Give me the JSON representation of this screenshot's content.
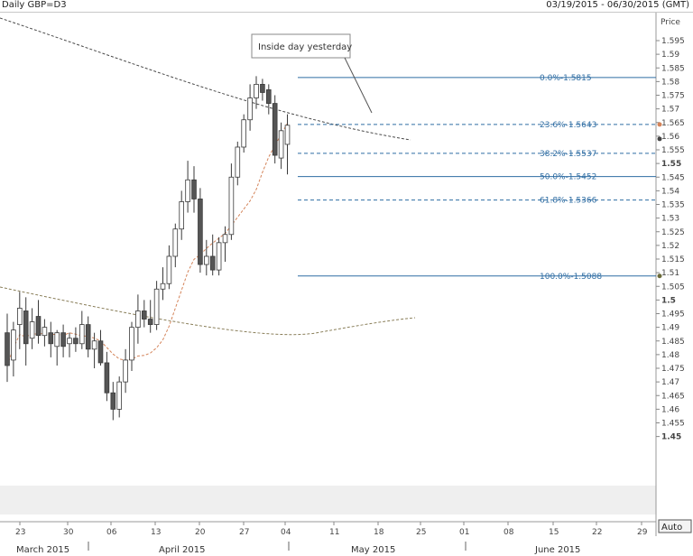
{
  "header": {
    "title": "Daily GBP=D3",
    "range": "03/19/2015 - 06/30/2015 (GMT)"
  },
  "yaxis": {
    "title": "Price",
    "ticks": [
      "1.595",
      "1.59",
      "1.585",
      "1.58",
      "1.575",
      "1.57",
      "1.565",
      "1.56",
      "1.555",
      "1.55",
      "1.545",
      "1.54",
      "1.535",
      "1.53",
      "1.525",
      "1.52",
      "1.515",
      "1.51",
      "1.505",
      "1.5",
      "1.495",
      "1.49",
      "1.485",
      "1.48",
      "1.475",
      "1.47",
      "1.465",
      "1.46",
      "1.455",
      "1.45"
    ],
    "bold_ticks": [
      "1.55",
      "1.5",
      "1.45"
    ],
    "auto_label": "Auto"
  },
  "xaxis": {
    "day_ticks": [
      "23",
      "30",
      "06",
      "13",
      "20",
      "27",
      "04",
      "11",
      "18",
      "25",
      "01",
      "08",
      "15",
      "22",
      "29"
    ],
    "months": [
      "March 2015",
      "April 2015",
      "May 2015",
      "June 2015"
    ]
  },
  "annotation": {
    "label": "Inside day yesterday"
  },
  "colors": {
    "up": "#ffffff",
    "down": "#555555",
    "wick": "#3a3a3a",
    "fib": "#2f6da3",
    "ma_long": "#4a4a4a",
    "ma_mid": "#8a7f5a",
    "ma_short": "#d4845a",
    "shade": "#efefef"
  },
  "chart_data": {
    "type": "candlestick",
    "title": "Daily GBP=D3",
    "date_range": "03/19/2015 - 06/30/2015 (GMT)",
    "ylabel": "Price",
    "ylim": [
      1.45,
      1.6
    ],
    "candles": [
      {
        "date": "2015-03-19",
        "open": 1.488,
        "high": 1.495,
        "low": 1.47,
        "close": 1.476
      },
      {
        "date": "2015-03-20",
        "open": 1.478,
        "high": 1.492,
        "low": 1.472,
        "close": 1.489
      },
      {
        "date": "2015-03-23",
        "open": 1.491,
        "high": 1.503,
        "low": 1.482,
        "close": 1.497
      },
      {
        "date": "2015-03-24",
        "open": 1.496,
        "high": 1.501,
        "low": 1.476,
        "close": 1.484
      },
      {
        "date": "2015-03-25",
        "open": 1.486,
        "high": 1.497,
        "low": 1.482,
        "close": 1.492
      },
      {
        "date": "2015-03-26",
        "open": 1.494,
        "high": 1.5,
        "low": 1.484,
        "close": 1.487
      },
      {
        "date": "2015-03-27",
        "open": 1.487,
        "high": 1.493,
        "low": 1.483,
        "close": 1.49
      },
      {
        "date": "2015-03-30",
        "open": 1.488,
        "high": 1.492,
        "low": 1.479,
        "close": 1.484
      },
      {
        "date": "2015-03-31",
        "open": 1.483,
        "high": 1.489,
        "low": 1.476,
        "close": 1.488
      },
      {
        "date": "2015-04-01",
        "open": 1.488,
        "high": 1.491,
        "low": 1.479,
        "close": 1.483
      },
      {
        "date": "2015-04-02",
        "open": 1.484,
        "high": 1.488,
        "low": 1.479,
        "close": 1.486
      },
      {
        "date": "2015-04-03",
        "open": 1.486,
        "high": 1.49,
        "low": 1.481,
        "close": 1.484
      },
      {
        "date": "2015-04-06",
        "open": 1.484,
        "high": 1.496,
        "low": 1.482,
        "close": 1.491
      },
      {
        "date": "2015-04-07",
        "open": 1.491,
        "high": 1.494,
        "low": 1.479,
        "close": 1.482
      },
      {
        "date": "2015-04-08",
        "open": 1.482,
        "high": 1.488,
        "low": 1.475,
        "close": 1.485
      },
      {
        "date": "2015-04-09",
        "open": 1.485,
        "high": 1.489,
        "low": 1.476,
        "close": 1.477
      },
      {
        "date": "2015-04-10",
        "open": 1.477,
        "high": 1.481,
        "low": 1.463,
        "close": 1.466
      },
      {
        "date": "2015-04-13",
        "open": 1.466,
        "high": 1.47,
        "low": 1.456,
        "close": 1.46
      },
      {
        "date": "2015-04-14",
        "open": 1.46,
        "high": 1.472,
        "low": 1.457,
        "close": 1.47
      },
      {
        "date": "2015-04-15",
        "open": 1.47,
        "high": 1.482,
        "low": 1.466,
        "close": 1.478
      },
      {
        "date": "2015-04-16",
        "open": 1.478,
        "high": 1.492,
        "low": 1.474,
        "close": 1.49
      },
      {
        "date": "2015-04-17",
        "open": 1.49,
        "high": 1.502,
        "low": 1.484,
        "close": 1.496
      },
      {
        "date": "2015-04-20",
        "open": 1.496,
        "high": 1.5,
        "low": 1.49,
        "close": 1.493
      },
      {
        "date": "2015-04-21",
        "open": 1.493,
        "high": 1.5,
        "low": 1.488,
        "close": 1.491
      },
      {
        "date": "2015-04-22",
        "open": 1.491,
        "high": 1.507,
        "low": 1.489,
        "close": 1.504
      },
      {
        "date": "2015-04-23",
        "open": 1.504,
        "high": 1.512,
        "low": 1.5,
        "close": 1.506
      },
      {
        "date": "2015-04-24",
        "open": 1.506,
        "high": 1.52,
        "low": 1.504,
        "close": 1.516
      },
      {
        "date": "2015-04-27",
        "open": 1.516,
        "high": 1.528,
        "low": 1.512,
        "close": 1.526
      },
      {
        "date": "2015-04-28",
        "open": 1.526,
        "high": 1.54,
        "low": 1.522,
        "close": 1.536
      },
      {
        "date": "2015-04-29",
        "open": 1.536,
        "high": 1.551,
        "low": 1.532,
        "close": 1.544
      },
      {
        "date": "2015-04-30",
        "open": 1.544,
        "high": 1.549,
        "low": 1.532,
        "close": 1.537
      },
      {
        "date": "2015-05-01",
        "open": 1.537,
        "high": 1.541,
        "low": 1.51,
        "close": 1.513
      },
      {
        "date": "2015-05-04",
        "open": 1.513,
        "high": 1.522,
        "low": 1.509,
        "close": 1.516
      },
      {
        "date": "2015-05-05",
        "open": 1.516,
        "high": 1.524,
        "low": 1.509,
        "close": 1.511
      },
      {
        "date": "2015-05-06",
        "open": 1.511,
        "high": 1.523,
        "low": 1.509,
        "close": 1.521
      },
      {
        "date": "2015-05-07",
        "open": 1.521,
        "high": 1.527,
        "low": 1.514,
        "close": 1.524
      },
      {
        "date": "2015-05-08",
        "open": 1.524,
        "high": 1.55,
        "low": 1.522,
        "close": 1.545
      },
      {
        "date": "2015-05-11",
        "open": 1.545,
        "high": 1.558,
        "low": 1.542,
        "close": 1.556
      },
      {
        "date": "2015-05-12",
        "open": 1.556,
        "high": 1.568,
        "low": 1.554,
        "close": 1.566
      },
      {
        "date": "2015-05-13",
        "open": 1.566,
        "high": 1.579,
        "low": 1.562,
        "close": 1.574
      },
      {
        "date": "2015-05-14",
        "open": 1.574,
        "high": 1.582,
        "low": 1.57,
        "close": 1.579
      },
      {
        "date": "2015-05-15",
        "open": 1.579,
        "high": 1.581,
        "low": 1.573,
        "close": 1.576
      },
      {
        "date": "2015-05-18",
        "open": 1.577,
        "high": 1.579,
        "low": 1.568,
        "close": 1.572
      },
      {
        "date": "2015-05-19",
        "open": 1.572,
        "high": 1.575,
        "low": 1.55,
        "close": 1.553
      },
      {
        "date": "2015-05-20",
        "open": 1.552,
        "high": 1.565,
        "low": 1.548,
        "close": 1.562
      },
      {
        "date": "2015-05-21",
        "open": 1.557,
        "high": 1.568,
        "low": 1.546,
        "close": 1.564
      }
    ],
    "fibonacci": [
      {
        "level": "0.0%",
        "value": "1.5815"
      },
      {
        "level": "23.6%",
        "value": "1.5643"
      },
      {
        "level": "38.2%",
        "value": "1.5537"
      },
      {
        "level": "50.0%",
        "value": "1.5452"
      },
      {
        "level": "61.8%",
        "value": "1.5366"
      },
      {
        "level": "100.0%",
        "value": "1.5088"
      }
    ],
    "annotations": [
      "Inside day yesterday"
    ],
    "grid": false
  }
}
